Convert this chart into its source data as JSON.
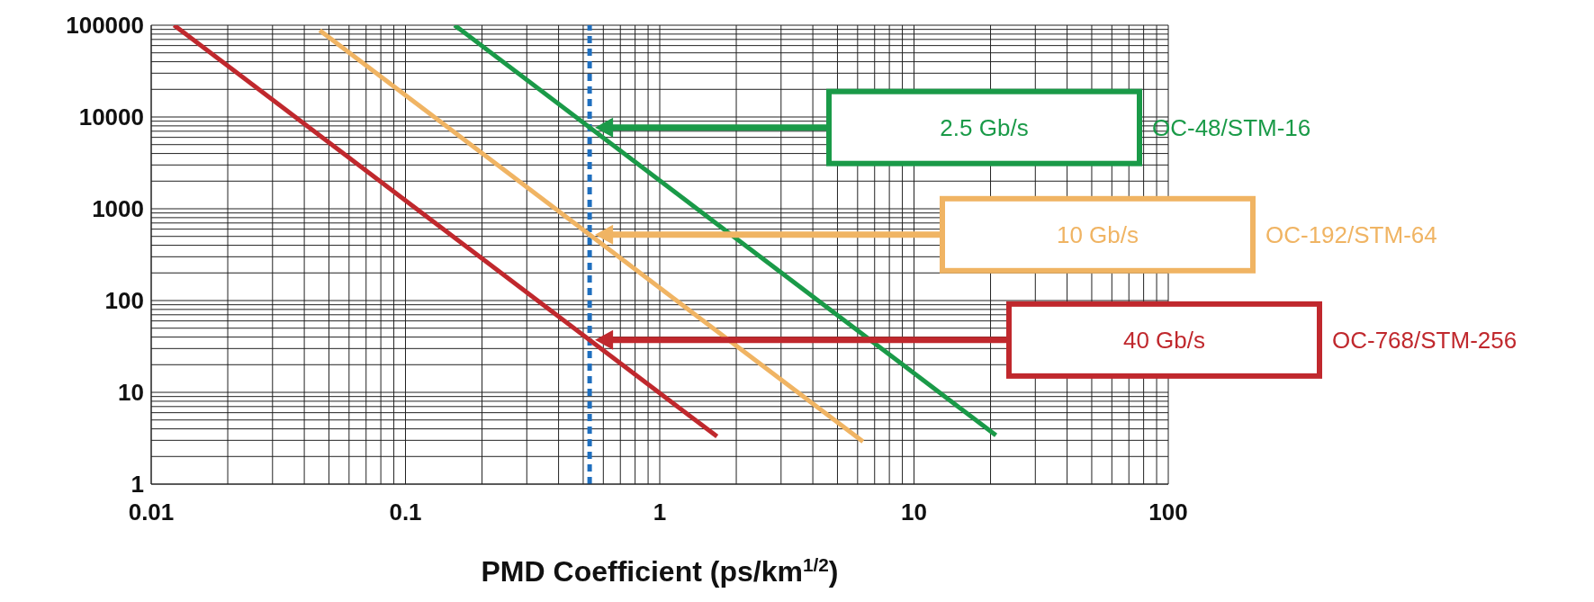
{
  "chart_data": {
    "type": "line",
    "xlabel": "PMD Coefficient (ps/km$^{1/2}$)",
    "log": "xy",
    "grid": true,
    "marker": "none",
    "line_style": "solid",
    "xlim": [
      0.01,
      100
    ],
    "xticks": [
      0.01,
      0.1,
      1,
      10,
      100
    ],
    "ylim": [
      1,
      100000
    ],
    "yticks": [
      1,
      10,
      100,
      1000,
      10000,
      100000
    ],
    "series": [
      {
        "color": "#1a9a48",
        "x": [
          0.156,
          21
        ],
        "values": [
          100000,
          3.4
        ]
      },
      {
        "color": "#f0b463",
        "x": [
          0.046,
          6.3
        ],
        "values": [
          88000,
          2.9
        ]
      },
      {
        "color": "#c0282d",
        "x": [
          0.0123,
          1.68
        ],
        "values": [
          100000,
          3.3
        ]
      }
    ],
    "ref_lines": [
      {
        "axis": "x",
        "value": 0.53,
        "color": "#1f6fbf",
        "line_style": "dashed"
      }
    ],
    "annotations": [
      "2.5 Gb/s",
      "OC-48/STM-16",
      "10 Gb/s",
      "OC-192/STM-64",
      "40 Gb/s",
      "OC-768/STM-256"
    ]
  }
}
